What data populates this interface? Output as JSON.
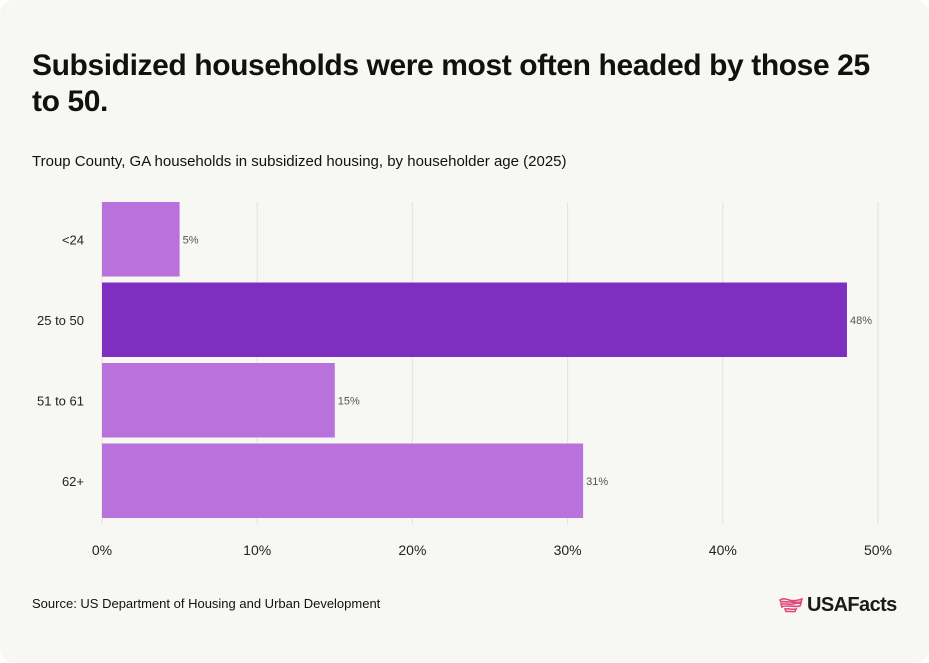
{
  "title": "Subsidized households were most often headed by those 25 to 50.",
  "subtitle": "Troup County, GA households in subsidized housing, by householder age (2025)",
  "source": "Source: US Department of Housing and Urban Development",
  "logo": {
    "text": "USAFacts",
    "icon": "us-map-flag-icon",
    "color": "#e0457b"
  },
  "chart_data": {
    "type": "bar",
    "orientation": "horizontal",
    "categories": [
      "<24",
      "25 to 50",
      "51 to 61",
      "62+"
    ],
    "values": [
      5,
      48,
      15,
      31
    ],
    "value_labels": [
      "5%",
      "48%",
      "15%",
      "31%"
    ],
    "xlim": [
      0,
      50
    ],
    "xticks": [
      0,
      10,
      20,
      30,
      40,
      50
    ],
    "xtick_labels": [
      "0%",
      "10%",
      "20%",
      "30%",
      "40%",
      "50%"
    ],
    "grid": true,
    "colors": {
      "default": "#b972dc",
      "highlight": "#7e2fbf"
    },
    "highlight_index": 1
  }
}
